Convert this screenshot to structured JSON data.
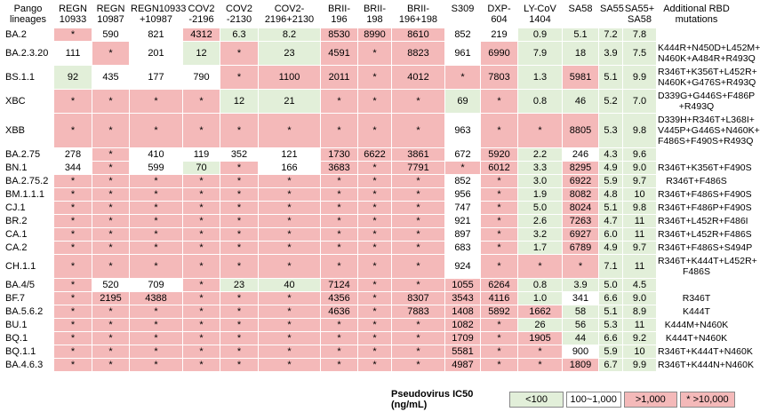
{
  "header": [
    "Pango\nlineages",
    "REGN\n10933",
    "REGN\n10987",
    "REGN10933\n+10987",
    "COV2\n-2196",
    "COV2\n-2130",
    "COV2-\n2196+2130",
    "BRII-\n196",
    "BRII-\n198",
    "BRII-\n196+198",
    "S309",
    "DXP-\n604",
    "LY-CoV\n1404",
    "SA58",
    "SA55",
    "SA55+\nSA58",
    "Additional RBD\nmutations"
  ],
  "groups": [
    [
      {
        "lineage": "BA.2",
        "values": [
          "*",
          "590",
          "821",
          "4312",
          "6.3",
          "8.2",
          "8530",
          "8990",
          "8610",
          "852",
          "219",
          "0.9",
          "5.1",
          "7.2",
          "7.8"
        ],
        "mutations": ""
      },
      {
        "lineage": "BA.2.3.20",
        "values": [
          "111",
          "*",
          "201",
          "12",
          "*",
          "23",
          "4591",
          "*",
          "8823",
          "961",
          "6990",
          "7.9",
          "18",
          "3.9",
          "7.5"
        ],
        "mutations": "K444R+N450D+L452M+\nN460K+A484R+R493Q"
      },
      {
        "lineage": "BS.1.1",
        "values": [
          "92",
          "435",
          "177",
          "790",
          "*",
          "1100",
          "2011",
          "*",
          "4012",
          "*",
          "7803",
          "1.3",
          "5981",
          "5.1",
          "9.9"
        ],
        "mutations": "R346T+K356T+L452R+\nN460K+G476S+R493Q"
      },
      {
        "lineage": "XBC",
        "values": [
          "*",
          "*",
          "*",
          "*",
          "12",
          "21",
          "*",
          "*",
          "*",
          "69",
          "*",
          "0.8",
          "46",
          "5.2",
          "7.0"
        ],
        "mutations": "D339G+G446S+F486P\n+R493Q"
      },
      {
        "lineage": "XBB",
        "values": [
          "*",
          "*",
          "*",
          "*",
          "*",
          "*",
          "*",
          "*",
          "*",
          "963",
          "*",
          "*",
          "8805",
          "5.3",
          "9.8"
        ],
        "mutations": "D339H+R346T+L368I+\nV445P+G446S+N460K+\nF486S+F490S+R493Q"
      }
    ],
    [
      {
        "lineage": "BA.2.75",
        "values": [
          "278",
          "*",
          "410",
          "119",
          "352",
          "121",
          "1730",
          "6622",
          "3861",
          "672",
          "5920",
          "2.2",
          "246",
          "4.3",
          "9.6"
        ],
        "mutations": ""
      },
      {
        "lineage": "BN.1",
        "values": [
          "344",
          "*",
          "599",
          "70",
          "*",
          "166",
          "3683",
          "*",
          "7791",
          "*",
          "6012",
          "3.3",
          "8295",
          "4.9",
          "9.0"
        ],
        "mutations": "R346T+K356T+F490S"
      },
      {
        "lineage": "BA.2.75.2",
        "values": [
          "*",
          "*",
          "*",
          "*",
          "*",
          "*",
          "*",
          "*",
          "*",
          "852",
          "*",
          "3.0",
          "6922",
          "5.9",
          "9.7"
        ],
        "mutations": "R346T+F486S"
      },
      {
        "lineage": "BM.1.1.1",
        "values": [
          "*",
          "*",
          "*",
          "*",
          "*",
          "*",
          "*",
          "*",
          "*",
          "956",
          "*",
          "1.9",
          "8082",
          "4.8",
          "10"
        ],
        "mutations": "R346T+F486S+F490S"
      },
      {
        "lineage": "CJ.1",
        "values": [
          "*",
          "*",
          "*",
          "*",
          "*",
          "*",
          "*",
          "*",
          "*",
          "747",
          "*",
          "5.0",
          "8024",
          "5.1",
          "9.8"
        ],
        "mutations": "R346T+F486P+F490S"
      },
      {
        "lineage": "BR.2",
        "values": [
          "*",
          "*",
          "*",
          "*",
          "*",
          "*",
          "*",
          "*",
          "*",
          "921",
          "*",
          "2.6",
          "7263",
          "4.7",
          "11"
        ],
        "mutations": "R346T+L452R+F486I"
      },
      {
        "lineage": "CA.1",
        "values": [
          "*",
          "*",
          "*",
          "*",
          "*",
          "*",
          "*",
          "*",
          "*",
          "897",
          "*",
          "3.2",
          "6927",
          "6.0",
          "11"
        ],
        "mutations": "R346T+L452R+F486S"
      },
      {
        "lineage": "CA.2",
        "values": [
          "*",
          "*",
          "*",
          "*",
          "*",
          "*",
          "*",
          "*",
          "*",
          "683",
          "*",
          "1.7",
          "6789",
          "4.9",
          "9.7"
        ],
        "mutations": "R346T+F486S+S494P"
      },
      {
        "lineage": "CH.1.1",
        "values": [
          "*",
          "*",
          "*",
          "*",
          "*",
          "*",
          "*",
          "*",
          "*",
          "924",
          "*",
          "*",
          "*",
          "7.1",
          "11"
        ],
        "mutations": "R346T+K444T+L452R+\nF486S"
      }
    ],
    [
      {
        "lineage": "BA.4/5",
        "values": [
          "*",
          "520",
          "709",
          "*",
          "23",
          "40",
          "7124",
          "*",
          "*",
          "1055",
          "6264",
          "0.8",
          "3.9",
          "5.0",
          "4.5"
        ],
        "mutations": ""
      },
      {
        "lineage": "BF.7",
        "values": [
          "*",
          "2195",
          "4388",
          "*",
          "*",
          "*",
          "4356",
          "*",
          "8307",
          "3543",
          "4116",
          "1.0",
          "341",
          "6.6",
          "9.0"
        ],
        "mutations": "R346T"
      },
      {
        "lineage": "BA.5.6.2",
        "values": [
          "*",
          "*",
          "*",
          "*",
          "*",
          "*",
          "4636",
          "*",
          "7883",
          "1408",
          "5892",
          "1662",
          "58",
          "5.1",
          "8.9"
        ],
        "mutations": "K444T"
      },
      {
        "lineage": "BU.1",
        "values": [
          "*",
          "*",
          "*",
          "*",
          "*",
          "*",
          "*",
          "*",
          "*",
          "1082",
          "*",
          "26",
          "56",
          "5.3",
          "11"
        ],
        "mutations": "K444M+N460K"
      },
      {
        "lineage": "BQ.1",
        "values": [
          "*",
          "*",
          "*",
          "*",
          "*",
          "*",
          "*",
          "*",
          "*",
          "1709",
          "*",
          "1905",
          "44",
          "6.6",
          "9.2"
        ],
        "mutations": "K444T+N460K"
      },
      {
        "lineage": "BQ.1.1",
        "values": [
          "*",
          "*",
          "*",
          "*",
          "*",
          "*",
          "*",
          "*",
          "*",
          "5581",
          "*",
          "*",
          "900",
          "5.9",
          "10"
        ],
        "mutations": "R346T+K444T+N460K"
      },
      {
        "lineage": "BA.4.6.3",
        "values": [
          "*",
          "*",
          "*",
          "*",
          "*",
          "*",
          "*",
          "*",
          "*",
          "4987",
          "*",
          "*",
          "1809",
          "6.7",
          "9.9"
        ],
        "mutations": "R346T+K444N+N460K"
      }
    ]
  ],
  "legend": {
    "title": "Pseudovirus IC50 (ng/mL)",
    "items": [
      "<100",
      "100~1,000",
      ">1,000",
      "* >10,000"
    ]
  }
}
